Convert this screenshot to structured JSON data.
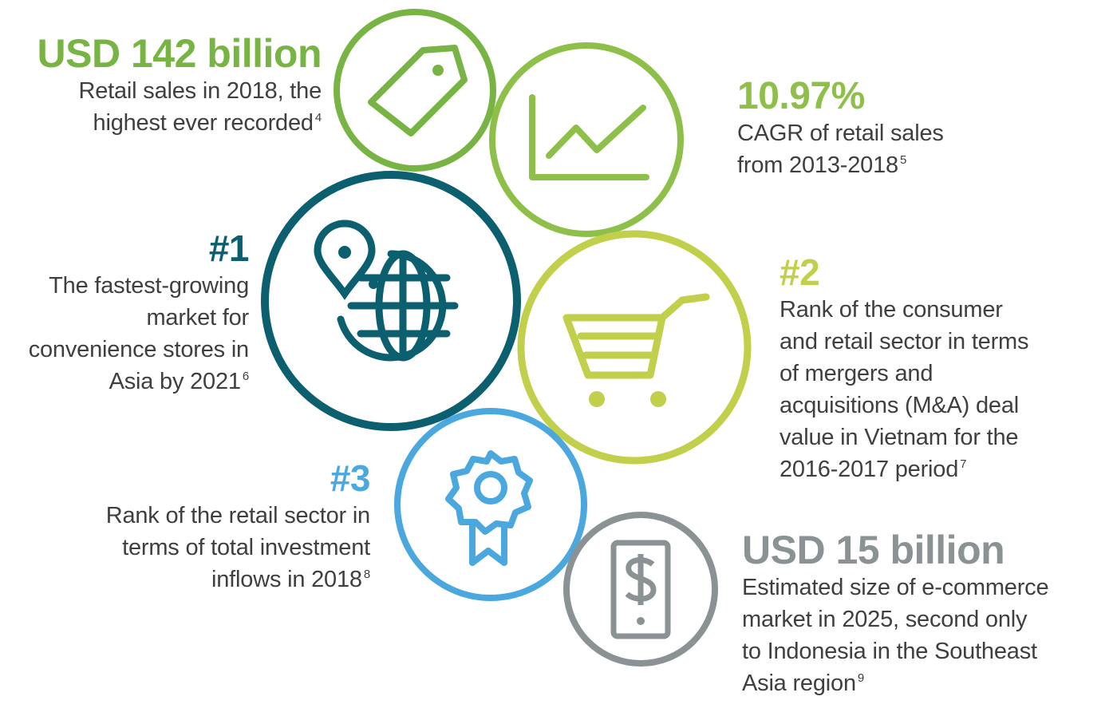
{
  "colors": {
    "green_dark": "#7ab648",
    "green_mid": "#8fbf4a",
    "teal": "#0b5f6e",
    "lime": "#c2cf4a",
    "blue": "#4aa8df",
    "gray": "#8b9293",
    "text": "#3f3f3f"
  },
  "stats": [
    {
      "id": "retail-sales",
      "headline": "USD 142 billion",
      "lines": [
        "Retail sales in 2018, the",
        "highest ever recorded"
      ],
      "footnote": "4",
      "icon": "price-tag-icon",
      "color": "#78b443"
    },
    {
      "id": "cagr",
      "headline": "10.97%",
      "lines": [
        "CAGR of retail sales",
        "from 2013-2018"
      ],
      "footnote": "5",
      "icon": "line-chart-icon",
      "color": "#8dbf49"
    },
    {
      "id": "convenience",
      "headline": "#1",
      "lines": [
        "The fastest-growing",
        "market for",
        "convenience stores in",
        "Asia by 2021"
      ],
      "footnote": "6",
      "icon": "globe-location-icon",
      "color": "#0b5f6e"
    },
    {
      "id": "mna",
      "headline": "#2",
      "lines": [
        "Rank of the consumer",
        "and retail sector in terms",
        "of mergers and",
        "acquisitions (M&A) deal",
        "value in Vietnam for the",
        "2016-2017 period"
      ],
      "footnote": "7",
      "icon": "shopping-cart-icon",
      "color": "#c2cf4a"
    },
    {
      "id": "investment",
      "headline": "#3",
      "lines": [
        "Rank of the retail sector in",
        "terms of total investment",
        "inflows in 2018"
      ],
      "footnote": "8",
      "icon": "award-ribbon-icon",
      "color": "#4aa8df"
    },
    {
      "id": "ecommerce",
      "headline": "USD 15 billion",
      "lines": [
        "Estimated size of e-commerce",
        "market in 2025, second only",
        "to Indonesia in the Southeast",
        "Asia region"
      ],
      "footnote": "9",
      "icon": "mobile-dollar-icon",
      "color": "#8b9293"
    }
  ]
}
